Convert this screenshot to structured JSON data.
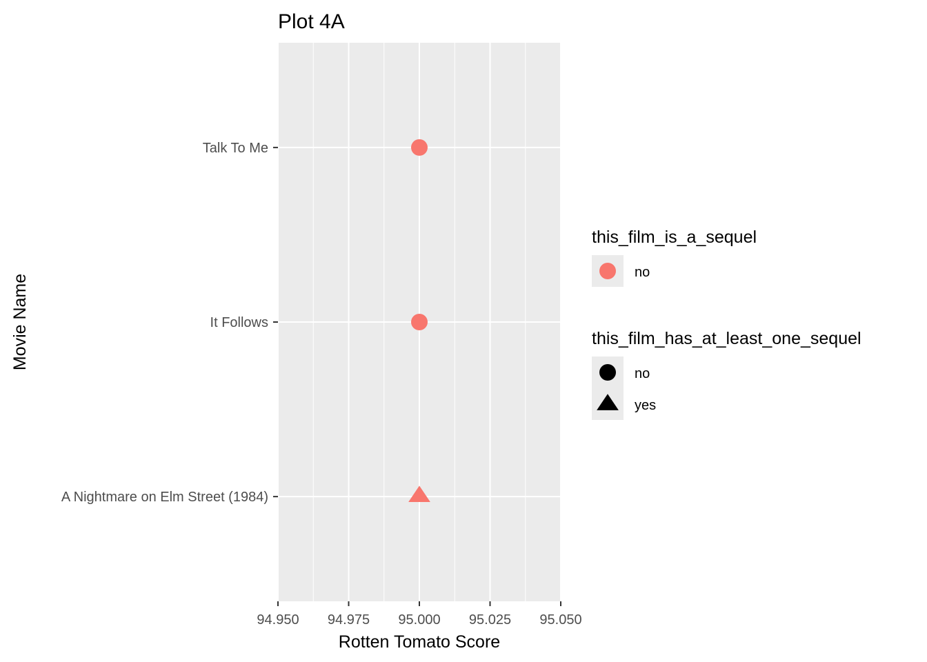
{
  "chart_data": {
    "type": "scatter",
    "title": "Plot 4A",
    "xlabel": "Rotten Tomato Score",
    "ylabel": "Movie Name",
    "xlim": [
      94.95,
      95.05
    ],
    "x_ticks": [
      "94.950",
      "94.975",
      "95.000",
      "95.025",
      "95.050"
    ],
    "x_tick_values": [
      94.95,
      94.975,
      95.0,
      95.025,
      95.05
    ],
    "categories": [
      "A Nightmare on Elm Street (1984)",
      "It Follows",
      "Talk To Me"
    ],
    "grid": true,
    "points": [
      {
        "movie": "Talk To Me",
        "x": 95.0,
        "this_film_is_a_sequel": "no",
        "this_film_has_at_least_one_sequel": "no"
      },
      {
        "movie": "It Follows",
        "x": 95.0,
        "this_film_is_a_sequel": "no",
        "this_film_has_at_least_one_sequel": "no"
      },
      {
        "movie": "A Nightmare on Elm Street (1984)",
        "x": 95.0,
        "this_film_is_a_sequel": "no",
        "this_film_has_at_least_one_sequel": "yes"
      }
    ],
    "colors": {
      "panel": "#EBEBEB",
      "grid": "#FFFFFF",
      "point": "#F8766D",
      "legend_key": "#000000"
    },
    "legend_placement": "right",
    "legends": [
      {
        "title": "this_film_is_a_sequel",
        "aesthetic": "color",
        "entries": [
          {
            "label": "no",
            "shape": "circle",
            "color": "#F8766D"
          }
        ]
      },
      {
        "title": "this_film_has_at_least_one_sequel",
        "aesthetic": "shape",
        "entries": [
          {
            "label": "no",
            "shape": "circle",
            "color": "#000000"
          },
          {
            "label": "yes",
            "shape": "triangle",
            "color": "#000000"
          }
        ]
      }
    ]
  }
}
